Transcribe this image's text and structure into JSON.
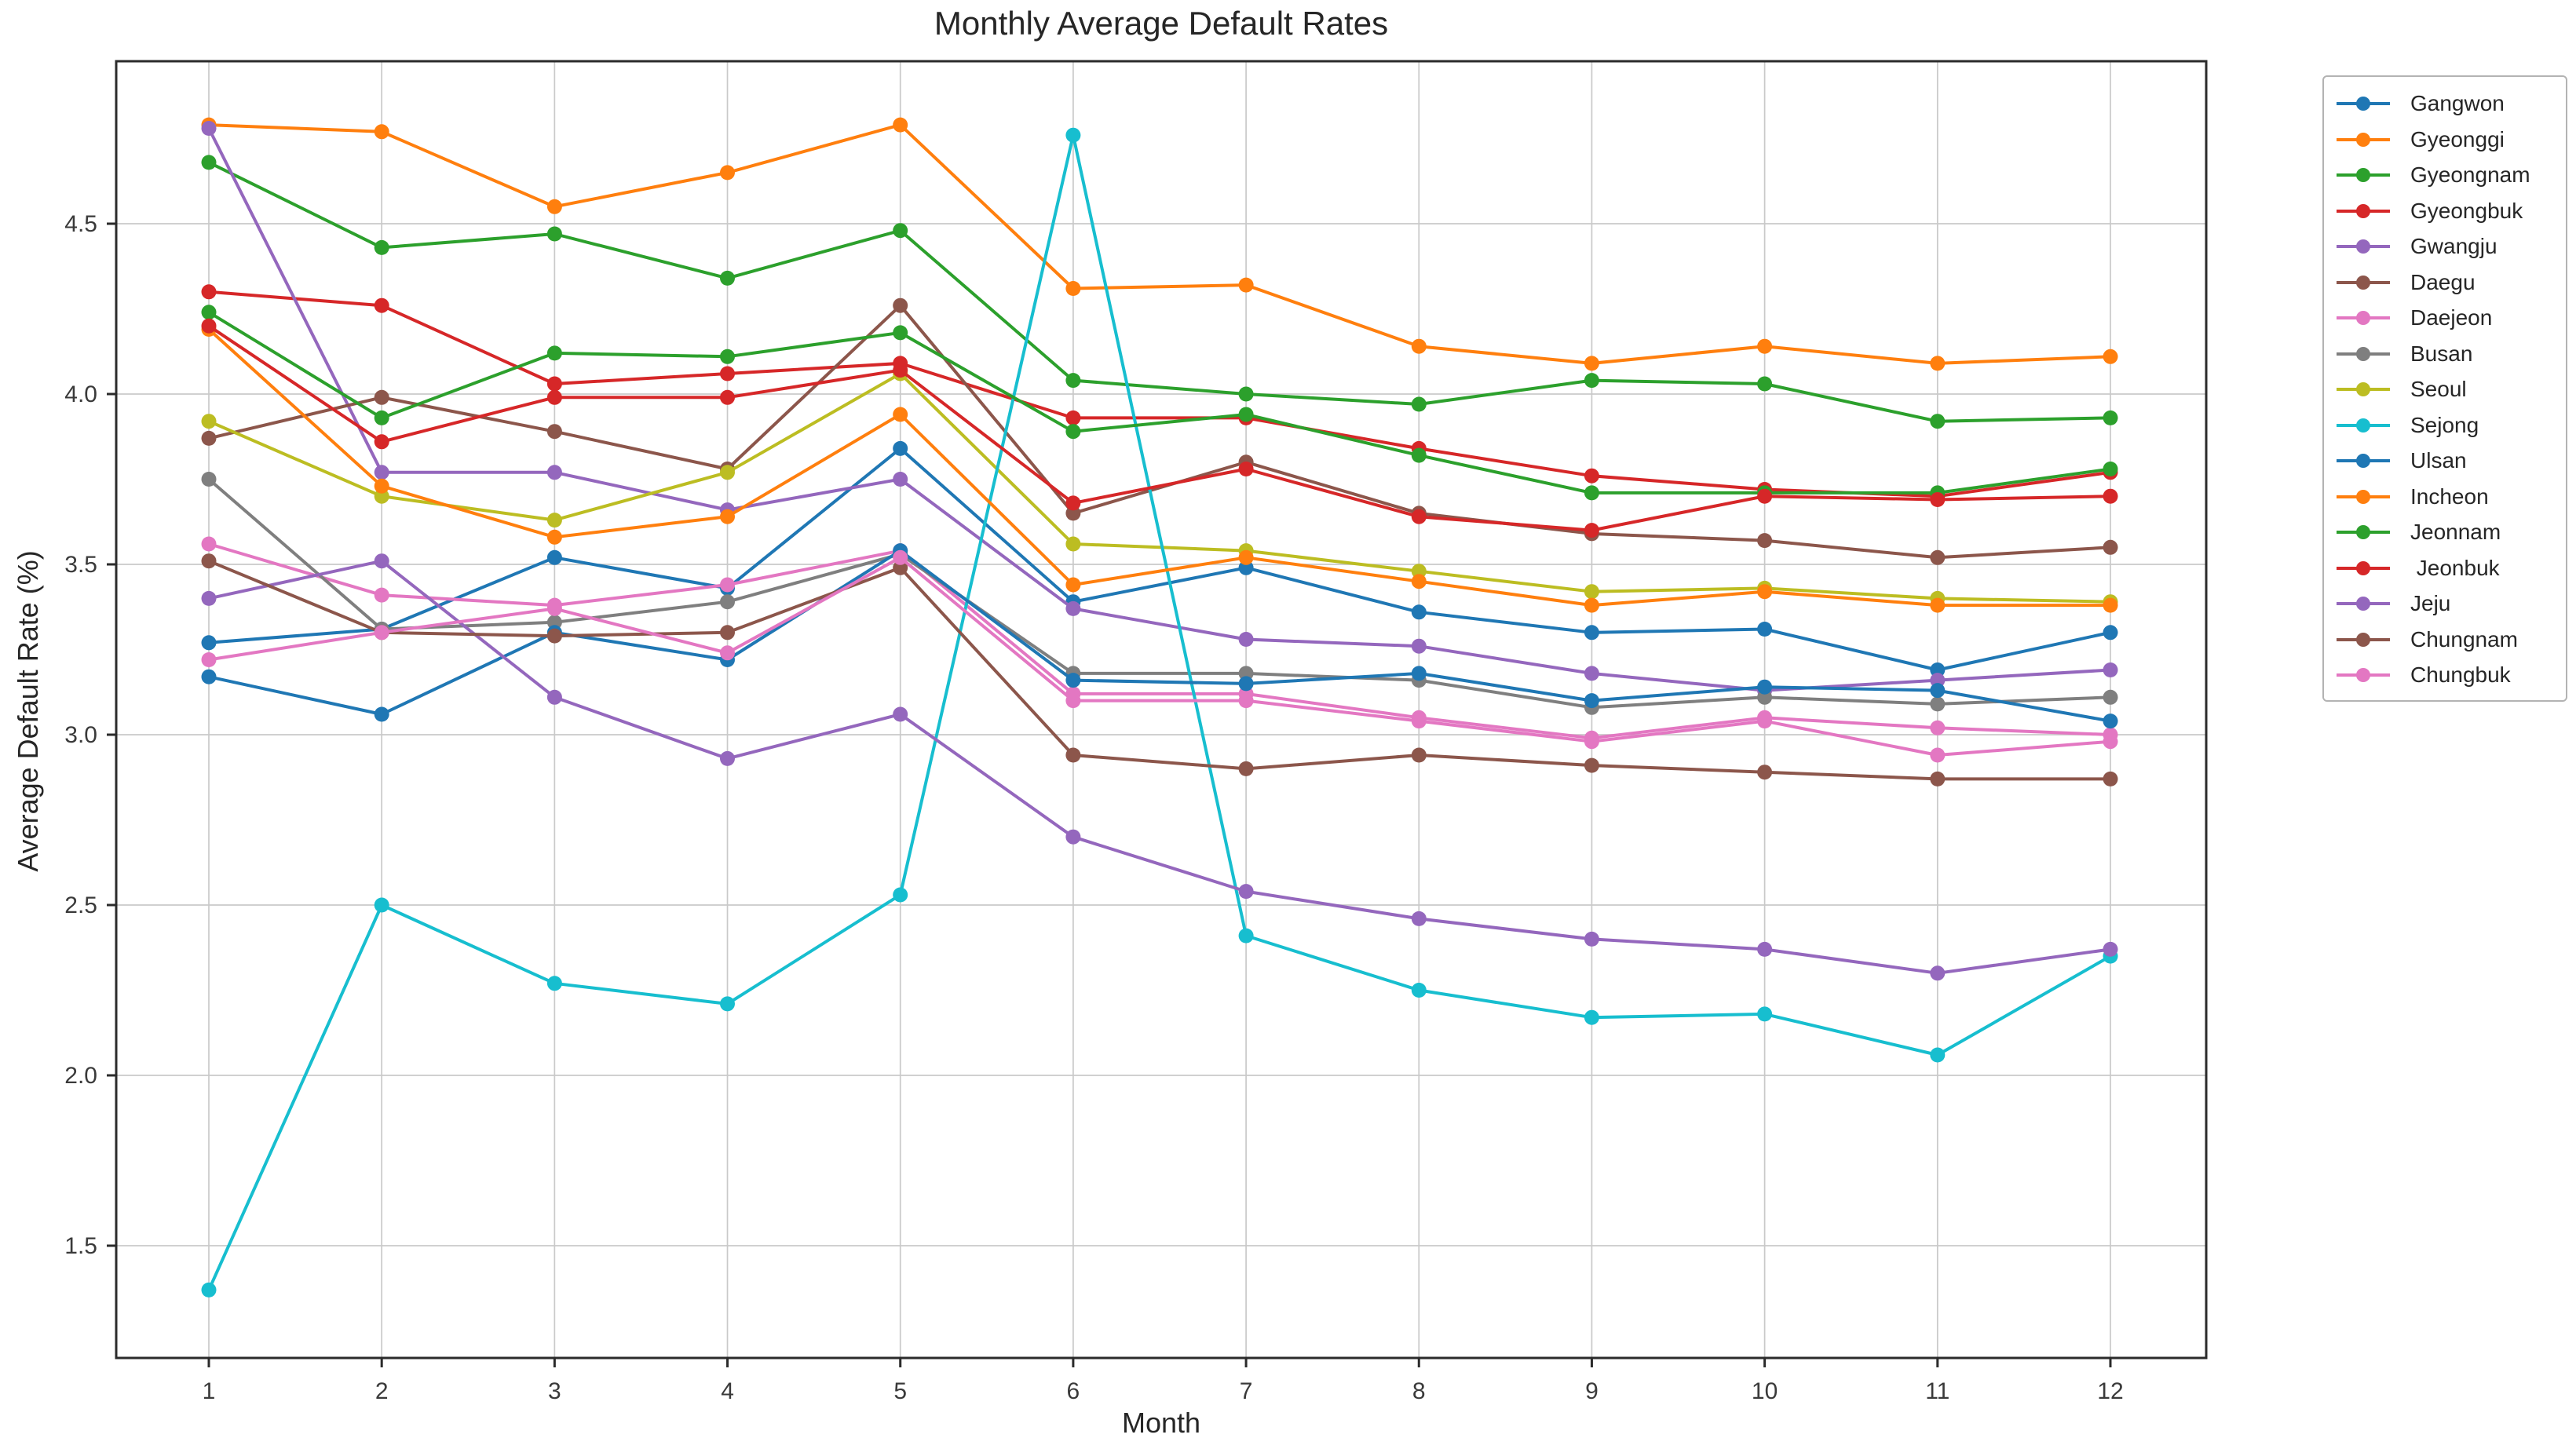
{
  "title": "Monthly Average Default Rates",
  "xlabel": "Month",
  "ylabel": "Average Default Rate (%)",
  "chart_data": {
    "type": "line",
    "x": [
      1,
      2,
      3,
      4,
      5,
      6,
      7,
      8,
      9,
      10,
      11,
      12
    ],
    "xtick_labels": [
      "1",
      "2",
      "3",
      "4",
      "5",
      "6",
      "7",
      "8",
      "9",
      "10",
      "11",
      "12"
    ],
    "ytick_labels": [
      "1.5",
      "2.0",
      "2.5",
      "3.0",
      "3.5",
      "4.0",
      "4.5"
    ],
    "yticks": [
      1.5,
      2.0,
      2.5,
      3.0,
      3.5,
      4.0,
      4.5
    ],
    "ylim": [
      1.16,
      4.98
    ],
    "grid": true,
    "grid_color": "#c9c9c9",
    "spine_color": "#2b2b2b",
    "legend_position": "right",
    "series": [
      {
        "name": "Gangwon",
        "label": "Gangwon",
        "color": "#1f77b4",
        "values": [
          3.27,
          3.31,
          3.52,
          3.43,
          3.84,
          3.39,
          3.49,
          3.36,
          3.3,
          3.31,
          3.19,
          3.3
        ]
      },
      {
        "name": "Gyeonggi",
        "label": "Gyeonggi",
        "color": "#ff7f0e",
        "values": [
          4.79,
          4.77,
          4.55,
          4.65,
          4.79,
          4.31,
          4.32,
          4.14,
          4.09,
          4.14,
          4.09,
          4.11
        ]
      },
      {
        "name": "Gyeongnam",
        "label": "Gyeongnam",
        "color": "#2ca02c",
        "values": [
          4.68,
          4.43,
          4.47,
          4.34,
          4.48,
          4.04,
          4.0,
          3.97,
          4.04,
          4.03,
          3.92,
          3.93
        ]
      },
      {
        "name": "Gyeongbuk",
        "label": "Gyeongbuk",
        "color": "#d62728",
        "values": [
          4.3,
          4.26,
          4.03,
          4.06,
          4.09,
          3.93,
          3.93,
          3.84,
          3.76,
          3.72,
          3.7,
          3.77
        ]
      },
      {
        "name": "Gwangju",
        "label": "Gwangju",
        "color": "#9467bd",
        "values": [
          4.78,
          3.77,
          3.77,
          3.66,
          3.75,
          3.37,
          3.28,
          3.26,
          3.18,
          3.13,
          3.16,
          3.19
        ]
      },
      {
        "name": "Daegu",
        "label": "Daegu",
        "color": "#8c564b",
        "values": [
          3.87,
          3.99,
          3.89,
          3.78,
          4.26,
          3.65,
          3.8,
          3.65,
          3.59,
          3.57,
          3.52,
          3.55
        ]
      },
      {
        "name": "Daejeon",
        "label": "Daejeon",
        "color": "#e377c2",
        "values": [
          3.56,
          3.41,
          3.38,
          3.44,
          3.54,
          3.12,
          3.12,
          3.05,
          2.99,
          3.05,
          3.02,
          3.0
        ]
      },
      {
        "name": "Busan",
        "label": "Busan",
        "color": "#7f7f7f",
        "values": [
          3.75,
          3.31,
          3.33,
          3.39,
          3.53,
          3.18,
          3.18,
          3.16,
          3.08,
          3.11,
          3.09,
          3.11
        ]
      },
      {
        "name": "Seoul",
        "label": "Seoul",
        "color": "#bcbd22",
        "values": [
          3.92,
          3.7,
          3.63,
          3.77,
          4.06,
          3.56,
          3.54,
          3.48,
          3.42,
          3.43,
          3.4,
          3.39
        ]
      },
      {
        "name": "Sejong",
        "label": "Sejong",
        "color": "#17becf",
        "values": [
          1.37,
          2.5,
          2.27,
          2.21,
          2.53,
          4.76,
          2.41,
          2.25,
          2.17,
          2.18,
          2.06,
          2.35
        ]
      },
      {
        "name": "Ulsan",
        "label": "Ulsan",
        "color": "#1f77b4",
        "values": [
          3.17,
          3.06,
          3.3,
          3.22,
          3.54,
          3.16,
          3.15,
          3.18,
          3.1,
          3.14,
          3.13,
          3.04
        ]
      },
      {
        "name": "Incheon",
        "label": "Incheon",
        "color": "#ff7f0e",
        "values": [
          4.19,
          3.73,
          3.58,
          3.64,
          3.94,
          3.44,
          3.52,
          3.45,
          3.38,
          3.42,
          3.38,
          3.38
        ]
      },
      {
        "name": "Jeonnam",
        "label": "Jeonnam",
        "color": "#2ca02c",
        "values": [
          4.24,
          3.93,
          4.12,
          4.11,
          4.18,
          3.89,
          3.94,
          3.82,
          3.71,
          3.71,
          3.71,
          3.78
        ]
      },
      {
        "name": "Jeonbuk",
        "label": " Jeonbuk",
        "color": "#d62728",
        "values": [
          4.2,
          3.86,
          3.99,
          3.99,
          4.07,
          3.68,
          3.78,
          3.64,
          3.6,
          3.7,
          3.69,
          3.7
        ]
      },
      {
        "name": "Jeju",
        "label": "Jeju",
        "color": "#9467bd",
        "values": [
          3.4,
          3.51,
          3.11,
          2.93,
          3.06,
          2.7,
          2.54,
          2.46,
          2.4,
          2.37,
          2.3,
          2.37
        ]
      },
      {
        "name": "Chungnam",
        "label": "Chungnam",
        "color": "#8c564b",
        "values": [
          3.51,
          3.3,
          3.29,
          3.3,
          3.49,
          2.94,
          2.9,
          2.94,
          2.91,
          2.89,
          2.87,
          2.87
        ]
      },
      {
        "name": "Chungbuk",
        "label": "Chungbuk",
        "color": "#e377c2",
        "values": [
          3.22,
          3.3,
          3.37,
          3.24,
          3.52,
          3.1,
          3.1,
          3.04,
          2.98,
          3.04,
          2.94,
          2.98
        ]
      }
    ]
  }
}
